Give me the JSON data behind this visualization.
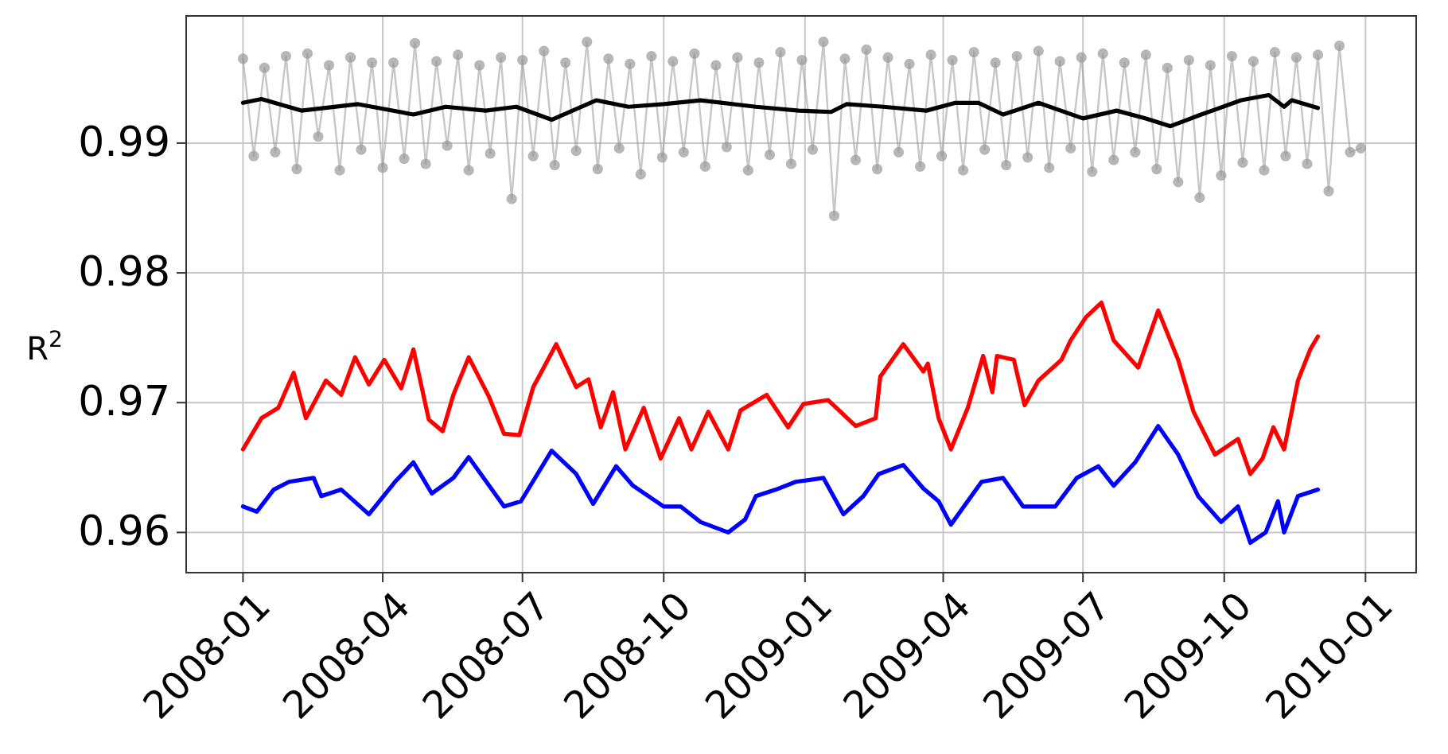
{
  "chart_data": {
    "type": "line",
    "ylabel": "R$^{2}$",
    "xlim": [
      "2007-11-25",
      "2010-02-03"
    ],
    "ylim": [
      0.9569,
      0.9998
    ],
    "xticks": [
      "2008-01",
      "2008-04",
      "2008-07",
      "2008-10",
      "2009-01",
      "2009-04",
      "2009-07",
      "2009-10",
      "2010-01"
    ],
    "yticks": [
      0.96,
      0.97,
      0.98,
      0.99
    ],
    "grid": true,
    "series": [
      {
        "color": "#999999",
        "marker": "circle",
        "x": [
          "2008-01-01",
          "2008-01-08",
          "2008-01-15",
          "2008-01-22",
          "2008-01-29",
          "2008-02-05",
          "2008-02-12",
          "2008-02-19",
          "2008-02-26",
          "2008-03-04",
          "2008-03-11",
          "2008-03-18",
          "2008-03-25",
          "2008-04-01",
          "2008-04-08",
          "2008-04-15",
          "2008-04-22",
          "2008-04-29",
          "2008-05-06",
          "2008-05-13",
          "2008-05-20",
          "2008-05-27",
          "2008-06-03",
          "2008-06-10",
          "2008-06-17",
          "2008-06-24",
          "2008-07-01",
          "2008-07-08",
          "2008-07-15",
          "2008-07-22",
          "2008-07-29",
          "2008-08-05",
          "2008-08-12",
          "2008-08-19",
          "2008-08-26",
          "2008-09-02",
          "2008-09-09",
          "2008-09-16",
          "2008-09-23",
          "2008-09-30",
          "2008-10-07",
          "2008-10-14",
          "2008-10-21",
          "2008-10-28",
          "2008-11-04",
          "2008-11-11",
          "2008-11-18",
          "2008-11-25",
          "2008-12-02",
          "2008-12-09",
          "2008-12-16",
          "2008-12-23",
          "2008-12-30",
          "2009-01-06",
          "2009-01-13",
          "2009-01-20",
          "2009-01-27",
          "2009-02-03",
          "2009-02-10",
          "2009-02-17",
          "2009-02-24",
          "2009-03-03",
          "2009-03-10",
          "2009-03-17",
          "2009-03-24",
          "2009-03-31",
          "2009-04-07",
          "2009-04-14",
          "2009-04-21",
          "2009-04-28",
          "2009-05-05",
          "2009-05-12",
          "2009-05-19",
          "2009-05-26",
          "2009-06-02",
          "2009-06-09",
          "2009-06-16",
          "2009-06-23",
          "2009-06-30",
          "2009-07-07",
          "2009-07-14",
          "2009-07-21",
          "2009-07-28",
          "2009-08-04",
          "2009-08-11",
          "2009-08-18",
          "2009-08-25",
          "2009-09-01",
          "2009-09-08",
          "2009-09-15",
          "2009-09-22",
          "2009-09-29",
          "2009-10-06",
          "2009-10-13",
          "2009-10-20",
          "2009-10-27",
          "2009-11-03",
          "2009-11-10",
          "2009-11-17",
          "2009-11-24",
          "2009-12-01",
          "2009-12-08",
          "2009-12-15",
          "2009-12-22",
          "2009-12-29"
        ],
        "values": [
          0.9965,
          0.989,
          0.9958,
          0.9893,
          0.9967,
          0.988,
          0.9969,
          0.9905,
          0.996,
          0.9879,
          0.9966,
          0.9895,
          0.9962,
          0.9881,
          0.9962,
          0.9888,
          0.9977,
          0.9884,
          0.9963,
          0.9898,
          0.9968,
          0.9879,
          0.996,
          0.9892,
          0.9966,
          0.9857,
          0.9964,
          0.989,
          0.9971,
          0.9883,
          0.9962,
          0.9894,
          0.9978,
          0.988,
          0.9965,
          0.9896,
          0.9961,
          0.9876,
          0.9967,
          0.9889,
          0.9963,
          0.9893,
          0.9969,
          0.9882,
          0.996,
          0.9897,
          0.9966,
          0.9879,
          0.9962,
          0.9891,
          0.997,
          0.9884,
          0.9964,
          0.9895,
          0.9978,
          0.9844,
          0.9965,
          0.9887,
          0.9972,
          0.988,
          0.9966,
          0.9893,
          0.9961,
          0.9882,
          0.9968,
          0.989,
          0.9964,
          0.9879,
          0.997,
          0.9895,
          0.9962,
          0.9883,
          0.9967,
          0.9889,
          0.9971,
          0.9881,
          0.9963,
          0.9896,
          0.9966,
          0.9878,
          0.9969,
          0.9887,
          0.9962,
          0.9893,
          0.9968,
          0.988,
          0.9958,
          0.987,
          0.9964,
          0.9858,
          0.996,
          0.9875,
          0.9967,
          0.9885,
          0.9963,
          0.9879,
          0.997,
          0.989,
          0.9966,
          0.9884,
          0.9968,
          0.9863,
          0.9975,
          0.9893,
          0.9896
        ]
      },
      {
        "color": "#000000",
        "x": [
          "2008-01-01",
          "2008-01-13",
          "2008-02-08",
          "2008-03-16",
          "2008-04-21",
          "2008-05-12",
          "2008-06-07",
          "2008-06-27",
          "2008-07-20",
          "2008-08-18",
          "2008-09-08",
          "2008-10-01",
          "2008-10-25",
          "2008-11-30",
          "2008-12-28",
          "2009-01-18",
          "2009-01-28",
          "2009-02-21",
          "2009-03-21",
          "2009-04-09",
          "2009-04-24",
          "2009-05-10",
          "2009-06-02",
          "2009-07-01",
          "2009-07-23",
          "2009-08-11",
          "2009-08-27",
          "2009-09-16",
          "2009-10-12",
          "2009-10-30",
          "2009-11-09",
          "2009-11-14",
          "2009-12-01"
        ],
        "values": [
          0.9931,
          0.9934,
          0.9925,
          0.993,
          0.9922,
          0.9928,
          0.9925,
          0.9928,
          0.9918,
          0.9933,
          0.9928,
          0.993,
          0.9933,
          0.9928,
          0.9925,
          0.9924,
          0.993,
          0.9928,
          0.9925,
          0.9931,
          0.9931,
          0.9922,
          0.9931,
          0.9919,
          0.9925,
          0.9919,
          0.9913,
          0.9922,
          0.9933,
          0.9937,
          0.9928,
          0.9933,
          0.9927
        ]
      },
      {
        "color": "#ff0000",
        "x": [
          "2008-01-01",
          "2008-01-13",
          "2008-01-24",
          "2008-02-03",
          "2008-02-11",
          "2008-02-24",
          "2008-03-05",
          "2008-03-14",
          "2008-03-23",
          "2008-04-02",
          "2008-04-13",
          "2008-04-21",
          "2008-05-01",
          "2008-05-10",
          "2008-05-17",
          "2008-05-27",
          "2008-06-09",
          "2008-06-19",
          "2008-06-29",
          "2008-07-08",
          "2008-07-23",
          "2008-08-05",
          "2008-08-13",
          "2008-08-21",
          "2008-08-29",
          "2008-09-06",
          "2008-09-18",
          "2008-09-29",
          "2008-10-11",
          "2008-10-19",
          "2008-10-30",
          "2008-11-12",
          "2008-11-20",
          "2008-12-07",
          "2008-12-21",
          "2008-12-31",
          "2009-01-16",
          "2009-02-03",
          "2009-02-16",
          "2009-02-19",
          "2009-03-06",
          "2009-03-19",
          "2009-03-22",
          "2009-03-29",
          "2009-04-06",
          "2009-04-17",
          "2009-04-27",
          "2009-05-03",
          "2009-05-06",
          "2009-05-17",
          "2009-05-24",
          "2009-06-02",
          "2009-06-17",
          "2009-06-23",
          "2009-07-03",
          "2009-07-13",
          "2009-07-21",
          "2009-08-06",
          "2009-08-19",
          "2009-09-01",
          "2009-09-11",
          "2009-09-25",
          "2009-10-10",
          "2009-10-18",
          "2009-10-26",
          "2009-11-02",
          "2009-11-09",
          "2009-11-18",
          "2009-11-26",
          "2009-12-01"
        ],
        "values": [
          0.9664,
          0.9688,
          0.9696,
          0.9723,
          0.9688,
          0.9717,
          0.9706,
          0.9735,
          0.9714,
          0.9733,
          0.9711,
          0.9741,
          0.9687,
          0.9678,
          0.9706,
          0.9735,
          0.9705,
          0.9676,
          0.9675,
          0.9712,
          0.9745,
          0.9712,
          0.9718,
          0.9681,
          0.9708,
          0.9664,
          0.9696,
          0.9657,
          0.9688,
          0.9664,
          0.9693,
          0.9664,
          0.9694,
          0.9706,
          0.9681,
          0.9699,
          0.9702,
          0.9682,
          0.9688,
          0.972,
          0.9745,
          0.9724,
          0.973,
          0.9688,
          0.9664,
          0.9696,
          0.9736,
          0.9708,
          0.9736,
          0.9733,
          0.9698,
          0.9717,
          0.9733,
          0.9748,
          0.9766,
          0.9777,
          0.9748,
          0.9727,
          0.9771,
          0.9733,
          0.9693,
          0.966,
          0.9672,
          0.9645,
          0.9657,
          0.9681,
          0.9664,
          0.9717,
          0.9741,
          0.9751
        ]
      },
      {
        "color": "#0000ff",
        "x": [
          "2008-01-01",
          "2008-01-10",
          "2008-01-21",
          "2008-01-31",
          "2008-02-16",
          "2008-02-21",
          "2008-03-05",
          "2008-03-23",
          "2008-04-09",
          "2008-04-21",
          "2008-05-03",
          "2008-05-17",
          "2008-05-27",
          "2008-06-19",
          "2008-06-30",
          "2008-07-20",
          "2008-08-05",
          "2008-08-16",
          "2008-08-31",
          "2008-09-11",
          "2008-10-01",
          "2008-10-12",
          "2008-10-25",
          "2008-11-12",
          "2008-11-23",
          "2008-11-30",
          "2008-12-13",
          "2008-12-26",
          "2009-01-13",
          "2009-01-26",
          "2009-02-08",
          "2009-02-18",
          "2009-03-06",
          "2009-03-19",
          "2009-03-29",
          "2009-04-06",
          "2009-04-26",
          "2009-05-10",
          "2009-05-23",
          "2009-06-13",
          "2009-06-27",
          "2009-07-11",
          "2009-07-21",
          "2009-08-04",
          "2009-08-19",
          "2009-09-01",
          "2009-09-14",
          "2009-09-29",
          "2009-10-10",
          "2009-10-18",
          "2009-10-28",
          "2009-11-05",
          "2009-11-09",
          "2009-11-18",
          "2009-12-01"
        ],
        "values": [
          0.962,
          0.9616,
          0.9633,
          0.9639,
          0.9642,
          0.9628,
          0.9633,
          0.9614,
          0.9639,
          0.9654,
          0.963,
          0.9642,
          0.9658,
          0.962,
          0.9624,
          0.9663,
          0.9645,
          0.9622,
          0.9651,
          0.9636,
          0.962,
          0.962,
          0.9608,
          0.96,
          0.961,
          0.9628,
          0.9633,
          0.9639,
          0.9642,
          0.9614,
          0.9628,
          0.9645,
          0.9652,
          0.9634,
          0.9624,
          0.9606,
          0.9639,
          0.9642,
          0.962,
          0.962,
          0.9642,
          0.9651,
          0.9636,
          0.9654,
          0.9682,
          0.966,
          0.9628,
          0.9608,
          0.962,
          0.9592,
          0.96,
          0.9624,
          0.96,
          0.9628,
          0.9633
        ]
      }
    ]
  }
}
